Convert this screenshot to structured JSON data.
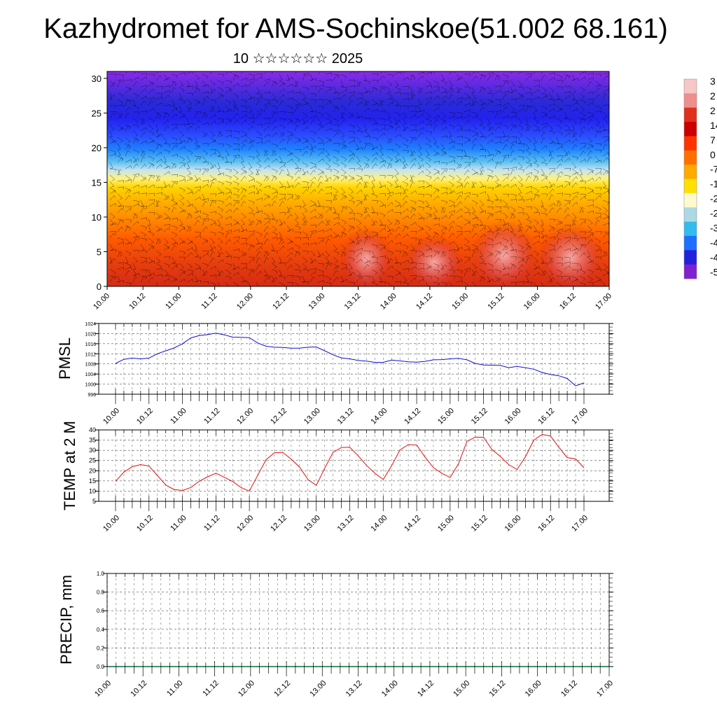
{
  "header": {
    "title": "Kazhydromet for AMS-Sochinskoe(51.002 68.161)",
    "subtitle": "10 ☆☆☆☆☆☆ 2025"
  },
  "colors": {
    "pmsl_line": "#1010d0",
    "temp_line": "#e01010",
    "precip_line": "#0a6b3a",
    "grid": "#555555"
  },
  "chart_data": [
    {
      "type": "heatmap",
      "name_hint": "upper-air cross section with wind barbs",
      "x_tick_labels": [
        "10.00",
        "10.12",
        "11.00",
        "11.12",
        "12.00",
        "12.12",
        "13.00",
        "13.12",
        "14.00",
        "14.12",
        "15.00",
        "15.12",
        "16.00",
        "16.12",
        "17.00"
      ],
      "y_ticks": [
        0,
        5,
        10,
        15,
        20,
        25,
        30
      ],
      "ylim": [
        0,
        31
      ],
      "colorbar_labels": [
        "3",
        "2",
        "2",
        "14",
        "7",
        "0",
        "-7",
        "-1",
        "-2",
        "-2",
        "-3",
        "-4",
        "-4",
        "-5"
      ],
      "colorbar_colors": [
        "#f7c6c6",
        "#ef8e8e",
        "#e0301e",
        "#cc0000",
        "#ff3300",
        "#ff7000",
        "#ffaa00",
        "#ffe000",
        "#fffacd",
        "#add8e6",
        "#33bbee",
        "#1e6fff",
        "#2222dd",
        "#8020d0"
      ],
      "legend_position": "right"
    },
    {
      "type": "line",
      "ylabel": "PMSL",
      "ylim": [
        996,
        1024
      ],
      "y_ticks": [
        996,
        1000,
        1004,
        1008,
        1012,
        1016,
        1020,
        1024
      ],
      "x_tick_labels": [
        "10.00",
        "10.12",
        "11.00",
        "11.12",
        "12.00",
        "12.12",
        "13.00",
        "13.12",
        "14.00",
        "14.12",
        "15.00",
        "15.12",
        "16.00",
        "16.12",
        "17.00"
      ],
      "x_hours_start": 0,
      "x_hours_step": 3,
      "values": [
        1008.2,
        1009.8,
        1010.3,
        1010.0,
        1010.3,
        1012.0,
        1013.2,
        1014.3,
        1016.0,
        1018.3,
        1019.2,
        1019.6,
        1020.2,
        1019.5,
        1018.6,
        1018.5,
        1018.4,
        1016.3,
        1015.0,
        1014.6,
        1014.5,
        1014.2,
        1014.2,
        1014.6,
        1014.7,
        1013.2,
        1011.6,
        1010.4,
        1010.0,
        1009.4,
        1009.1,
        1008.6,
        1008.6,
        1009.5,
        1009.2,
        1008.8,
        1008.7,
        1009.0,
        1009.6,
        1009.7,
        1010.0,
        1010.2,
        1009.6,
        1008.2,
        1007.6,
        1007.5,
        1007.4,
        1006.5,
        1007.0,
        1006.5,
        1005.9,
        1004.6,
        1003.8,
        1003.3,
        1002.2,
        999.3,
        1000.5
      ]
    },
    {
      "type": "line",
      "ylabel": "TEMP at 2 M",
      "ylim": [
        5,
        40
      ],
      "y_ticks": [
        5,
        10,
        15,
        20,
        25,
        30,
        35,
        40
      ],
      "x_tick_labels": [
        "10.00",
        "10.12",
        "11.00",
        "11.12",
        "12.00",
        "12.12",
        "13.00",
        "13.12",
        "14.00",
        "14.12",
        "15.00",
        "15.12",
        "16.00",
        "16.12",
        "17.00"
      ],
      "x_hours_start": 0,
      "x_hours_step": 3,
      "values": [
        14.8,
        19.3,
        22.0,
        23.0,
        22.3,
        17.7,
        13.0,
        10.8,
        10.3,
        11.8,
        14.8,
        17.0,
        18.8,
        16.8,
        14.7,
        11.8,
        10.0,
        17.8,
        25.4,
        28.8,
        29.0,
        25.7,
        21.8,
        15.7,
        12.8,
        21.2,
        29.0,
        31.4,
        31.5,
        27.4,
        22.6,
        18.8,
        15.7,
        22.4,
        30.2,
        32.8,
        32.6,
        26.7,
        21.5,
        18.8,
        16.7,
        23.4,
        34.3,
        36.5,
        36.4,
        30.4,
        27.0,
        23.0,
        20.6,
        26.8,
        35.0,
        37.8,
        37.0,
        31.5,
        26.4,
        25.8,
        21.5
      ]
    },
    {
      "type": "line",
      "ylabel": "PRECIP, mm",
      "ylim": [
        0.0,
        1.0
      ],
      "y_ticks": [
        "0.0",
        "0.2",
        "0.4",
        "0.6",
        "0.8",
        "1.0"
      ],
      "x_tick_labels": [
        "10.00",
        "10.12",
        "11.00",
        "11.12",
        "12.00",
        "12.12",
        "13.00",
        "13.12",
        "14.00",
        "14.12",
        "15.00",
        "15.12",
        "16.00",
        "16.12",
        "17.00"
      ],
      "values": [
        0,
        0,
        0,
        0,
        0,
        0,
        0,
        0,
        0,
        0,
        0,
        0,
        0,
        0,
        0
      ]
    }
  ]
}
